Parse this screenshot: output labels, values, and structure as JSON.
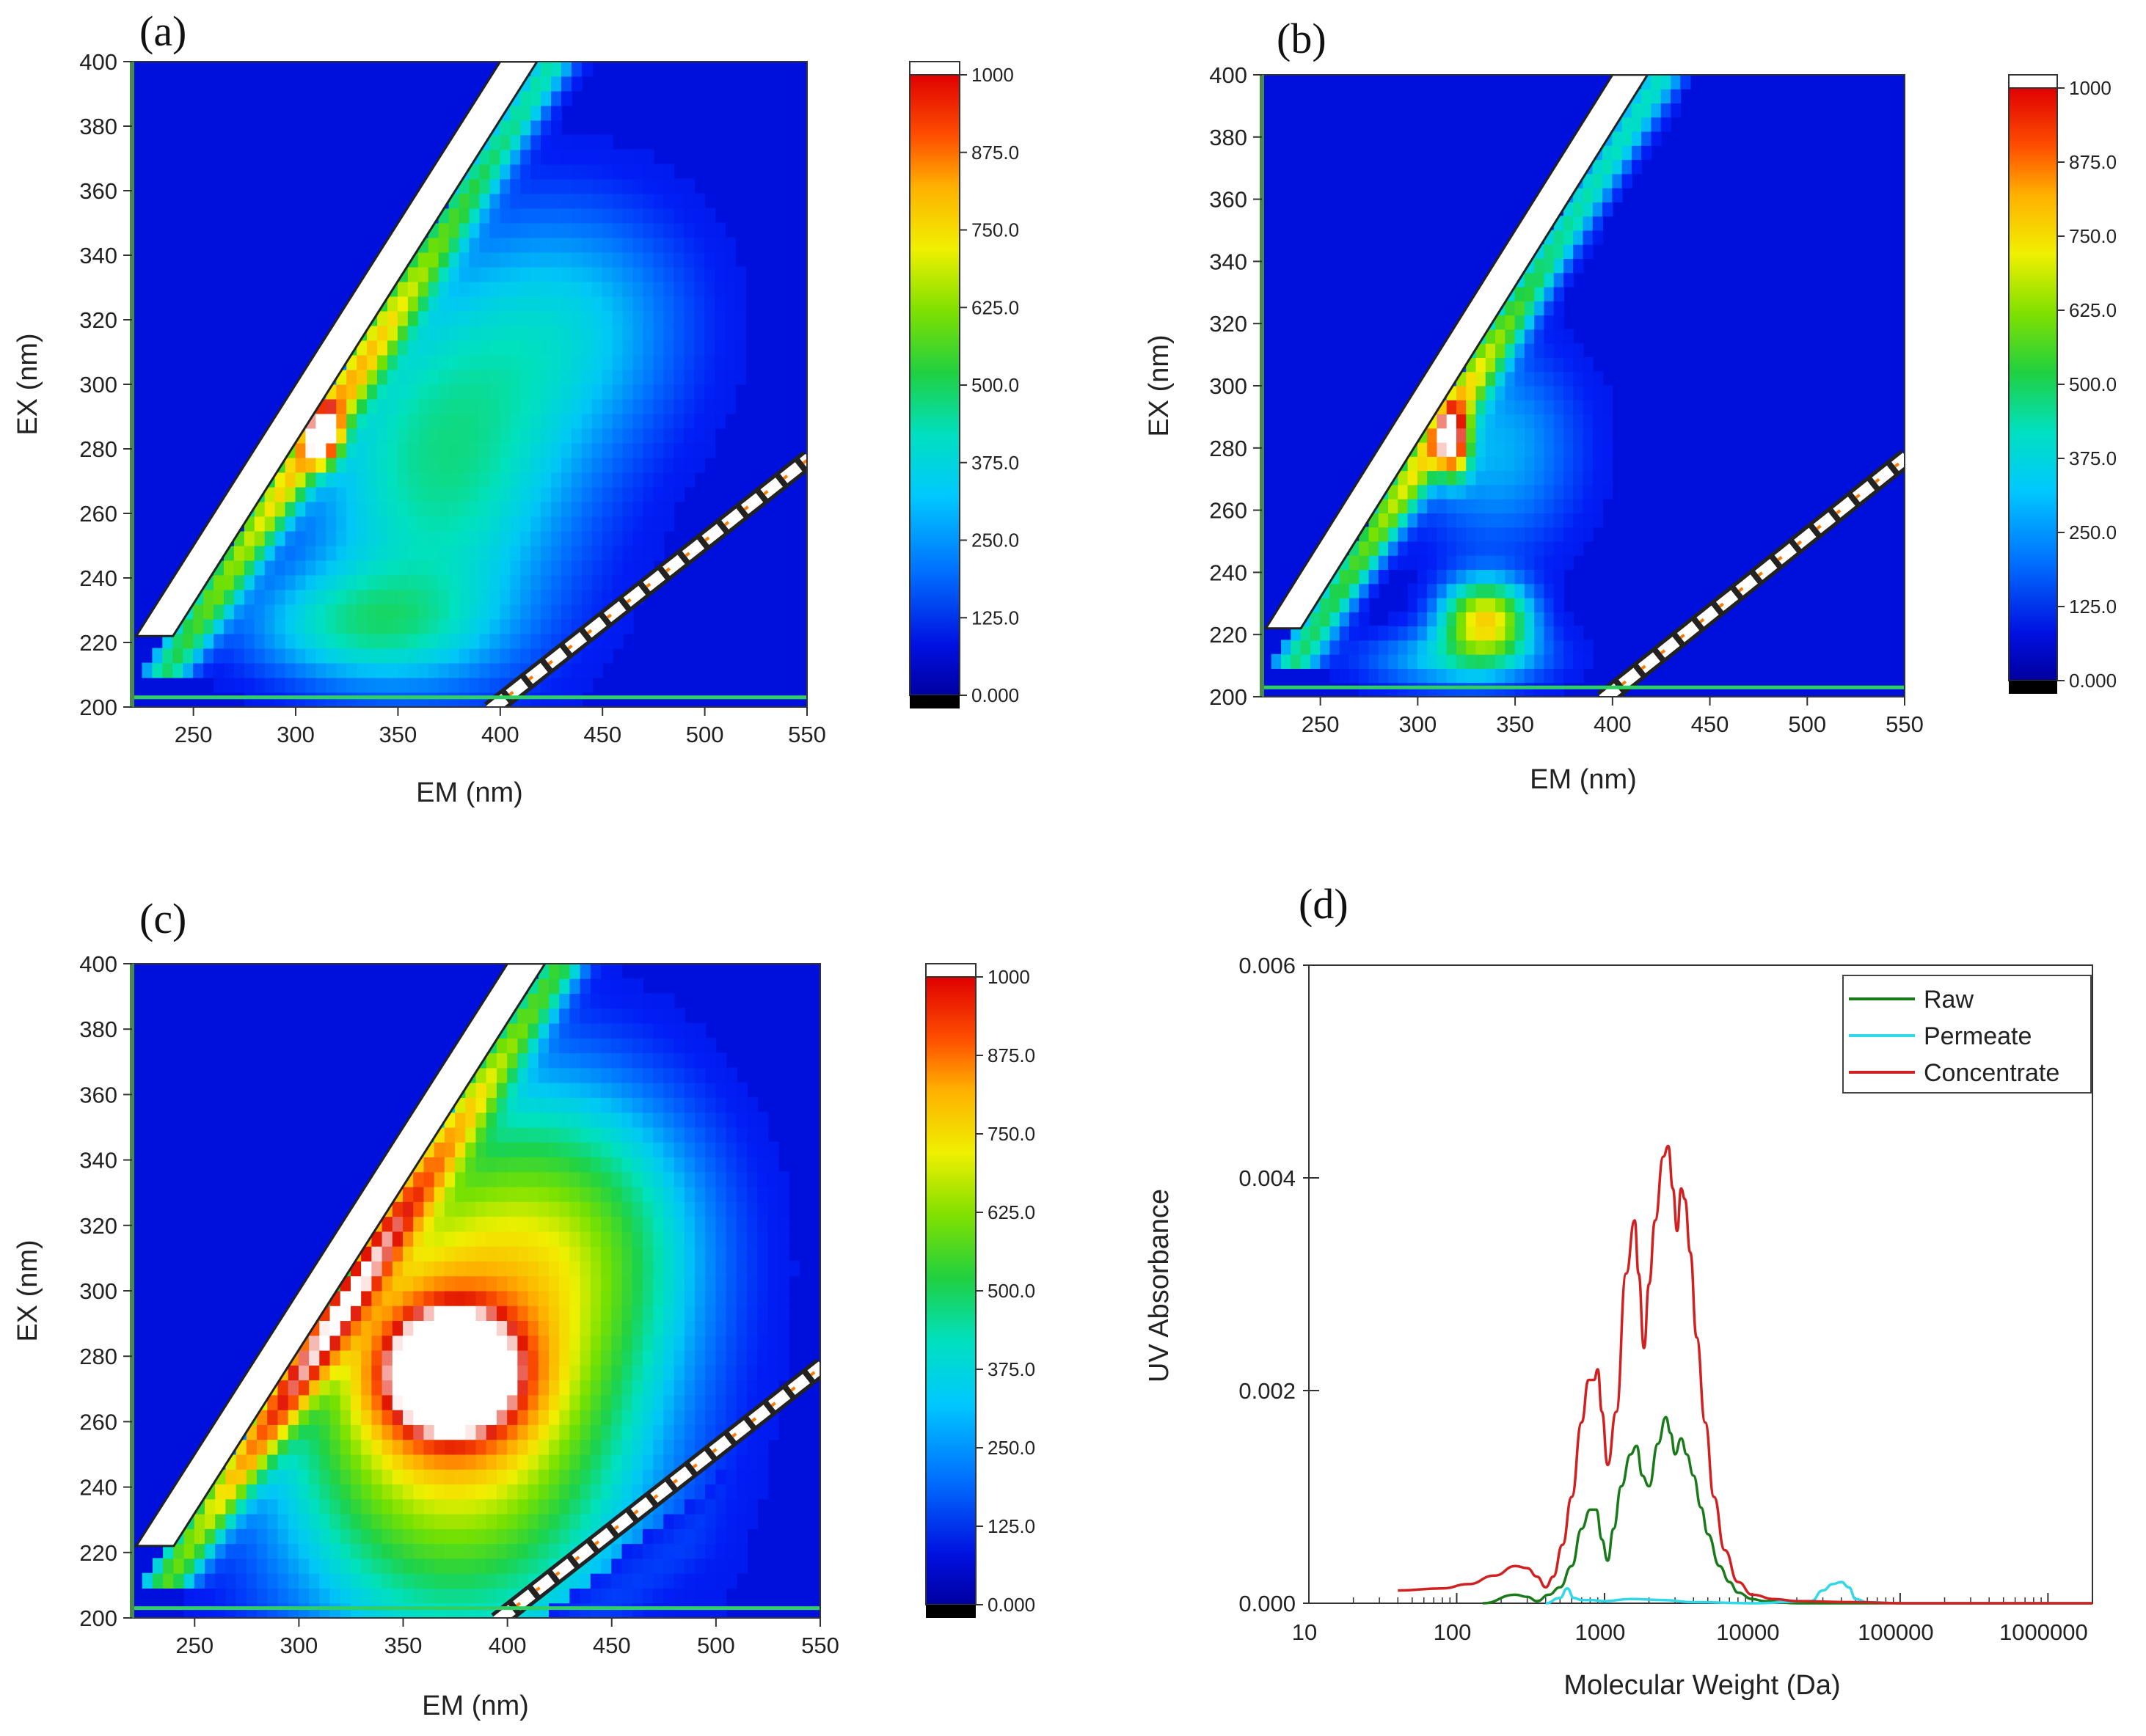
{
  "colors": {
    "background_blue": "#0a1cf5",
    "colormap": [
      "#000000",
      "#0010d0",
      "#0040ff",
      "#0090ff",
      "#00d8f0",
      "#00e0a0",
      "#30d030",
      "#a0e000",
      "#f8f000",
      "#ffb000",
      "#ff6000",
      "#e81000",
      "#ffffff"
    ],
    "raw": "#1a7a1a",
    "permeate": "#30d8e8",
    "concentrate": "#d02020"
  },
  "chart_data": [
    {
      "panel": "(a)",
      "type": "heatmap",
      "xlabel": "EM (nm)",
      "ylabel": "EX (nm)",
      "xlim": [
        220,
        550
      ],
      "ylim": [
        200,
        400
      ],
      "x_ticks": [
        "250",
        "300",
        "350",
        "400",
        "450",
        "500",
        "550"
      ],
      "y_ticks": [
        "200",
        "220",
        "240",
        "260",
        "280",
        "300",
        "320",
        "340",
        "360",
        "380",
        "400"
      ],
      "colorbar_ticks": [
        "0.000",
        "125.0",
        "250.0",
        "375.0",
        "500.0",
        "625.0",
        "750.0",
        "875.0",
        "1000"
      ],
      "colorbar_range": [
        0,
        1000
      ],
      "features": [
        {
          "kind": "peak",
          "em": 370,
          "ex": 275,
          "rx": 70,
          "ry": 60,
          "intensity": 330
        },
        {
          "kind": "peak",
          "em": 330,
          "ex": 225,
          "rx": 60,
          "ry": 18,
          "intensity": 230
        },
        {
          "kind": "peak",
          "em": 440,
          "ex": 320,
          "rx": 60,
          "ry": 40,
          "intensity": 180
        },
        {
          "kind": "ridge",
          "em_offset": 20,
          "intensity": 560
        },
        {
          "kind": "hotspot",
          "em": 313,
          "ex": 285,
          "rx": 8,
          "ry": 8,
          "intensity": 950
        }
      ]
    },
    {
      "panel": "(b)",
      "type": "heatmap",
      "xlabel": "EM (nm)",
      "ylabel": "EX (nm)",
      "xlim": [
        220,
        550
      ],
      "ylim": [
        200,
        400
      ],
      "x_ticks": [
        "250",
        "300",
        "350",
        "400",
        "450",
        "500",
        "550"
      ],
      "y_ticks": [
        "200",
        "220",
        "240",
        "260",
        "280",
        "300",
        "320",
        "340",
        "360",
        "380",
        "400"
      ],
      "colorbar_ticks": [
        "0.000",
        "125.0",
        "250.0",
        "375.0",
        "500.0",
        "625.0",
        "750.0",
        "875.0",
        "1000"
      ],
      "colorbar_range": [
        0,
        1000
      ],
      "features": [
        {
          "kind": "peak",
          "em": 335,
          "ex": 225,
          "rx": 22,
          "ry": 12,
          "intensity": 600
        },
        {
          "kind": "peak",
          "em": 340,
          "ex": 280,
          "rx": 45,
          "ry": 35,
          "intensity": 200
        },
        {
          "kind": "peak",
          "em": 320,
          "ex": 212,
          "rx": 50,
          "ry": 10,
          "intensity": 220
        },
        {
          "kind": "ridge",
          "em_offset": 20,
          "intensity": 540
        },
        {
          "kind": "hotspot",
          "em": 318,
          "ex": 282,
          "rx": 8,
          "ry": 10,
          "intensity": 880
        }
      ]
    },
    {
      "panel": "(c)",
      "type": "heatmap",
      "xlabel": "EM (nm)",
      "ylabel": "EX (nm)",
      "xlim": [
        220,
        550
      ],
      "ylim": [
        200,
        400
      ],
      "x_ticks": [
        "250",
        "300",
        "350",
        "400",
        "450",
        "500",
        "550"
      ],
      "y_ticks": [
        "200",
        "220",
        "240",
        "260",
        "280",
        "300",
        "320",
        "340",
        "360",
        "380",
        "400"
      ],
      "colorbar_ticks": [
        "0.000",
        "125.0",
        "250.0",
        "375.0",
        "500.0",
        "625.0",
        "750.0",
        "875.0",
        "1000"
      ],
      "colorbar_range": [
        0,
        1000
      ],
      "features": [
        {
          "kind": "peak",
          "em": 375,
          "ex": 272,
          "rx": 85,
          "ry": 75,
          "intensity": 720
        },
        {
          "kind": "peak",
          "em": 373,
          "ex": 275,
          "rx": 30,
          "ry": 18,
          "intensity": 1100
        },
        {
          "kind": "peak",
          "em": 440,
          "ex": 320,
          "rx": 60,
          "ry": 45,
          "intensity": 230
        },
        {
          "kind": "ridge",
          "em_offset": 20,
          "intensity": 680
        }
      ]
    },
    {
      "panel": "(d)",
      "type": "line",
      "xscale": "log",
      "xlabel": "Molecular Weight (Da)",
      "ylabel": "UV Absorbance",
      "xlim": [
        10,
        2000000
      ],
      "ylim": [
        0,
        0.006
      ],
      "x_ticks": [
        "10",
        "100",
        "1000",
        "10000",
        "100000",
        "1000000"
      ],
      "y_ticks": [
        "0.000",
        "0.002",
        "0.004",
        "0.006"
      ],
      "legend": [
        "Raw",
        "Permeate",
        "Concentrate"
      ],
      "legend_position": "top-right",
      "series": [
        {
          "name": "Raw",
          "x": [
            150,
            250,
            300,
            350,
            420,
            500,
            600,
            700,
            800,
            880,
            960,
            1050,
            1150,
            1300,
            1500,
            1650,
            1800,
            2000,
            2300,
            2600,
            2800,
            3000,
            3300,
            3600,
            4000,
            4500,
            5000,
            6000,
            7000,
            8000,
            10000,
            12000,
            20000,
            100000,
            2000000
          ],
          "y": [
            0.0,
            8e-05,
            6e-05,
            2e-05,
            8e-05,
            0.00015,
            0.00035,
            0.0007,
            0.00088,
            0.00088,
            0.0006,
            0.0004,
            0.0007,
            0.0011,
            0.0014,
            0.00148,
            0.0012,
            0.0011,
            0.0015,
            0.00175,
            0.0016,
            0.0014,
            0.00155,
            0.0014,
            0.0012,
            0.0009,
            0.00065,
            0.00035,
            0.0002,
            0.0001,
            4e-05,
            2e-05,
            0.0,
            0.0,
            0.0
          ]
        },
        {
          "name": "Permeate",
          "x": [
            400,
            500,
            560,
            620,
            700,
            800,
            1000,
            1500,
            2500,
            4000,
            10000,
            25000,
            30000,
            35000,
            40000,
            45000,
            50000,
            60000,
            100000,
            2000000
          ],
          "y": [
            0.0,
            5e-05,
            0.00014,
            5e-05,
            3e-05,
            3e-05,
            2e-05,
            4e-05,
            3e-05,
            1e-05,
            0.0,
            2e-05,
            0.00012,
            0.00018,
            0.0002,
            0.00015,
            4e-05,
            1e-05,
            0.0,
            0.0
          ]
        },
        {
          "name": "Concentrate",
          "x": [
            40,
            80,
            120,
            180,
            250,
            300,
            350,
            400,
            450,
            520,
            600,
            700,
            780,
            850,
            900,
            960,
            1050,
            1200,
            1400,
            1600,
            1700,
            1850,
            2000,
            2200,
            2500,
            2700,
            2900,
            3100,
            3300,
            3500,
            3800,
            4200,
            4800,
            5500,
            6500,
            8000,
            10000,
            14000,
            20000,
            50000,
            100000,
            500000,
            2000000
          ],
          "y": [
            0.00012,
            0.00014,
            0.00018,
            0.00026,
            0.00035,
            0.00033,
            0.00025,
            0.00015,
            0.00025,
            0.00055,
            0.001,
            0.0017,
            0.0021,
            0.0021,
            0.0022,
            0.0018,
            0.0013,
            0.0018,
            0.0031,
            0.0036,
            0.0031,
            0.0024,
            0.003,
            0.0036,
            0.0042,
            0.0043,
            0.0039,
            0.0035,
            0.0039,
            0.0038,
            0.0033,
            0.0025,
            0.0017,
            0.001,
            0.0005,
            0.0002,
            8e-05,
            4e-05,
            2e-05,
            1e-05,
            0.0,
            0.0,
            0.0
          ]
        }
      ]
    }
  ]
}
